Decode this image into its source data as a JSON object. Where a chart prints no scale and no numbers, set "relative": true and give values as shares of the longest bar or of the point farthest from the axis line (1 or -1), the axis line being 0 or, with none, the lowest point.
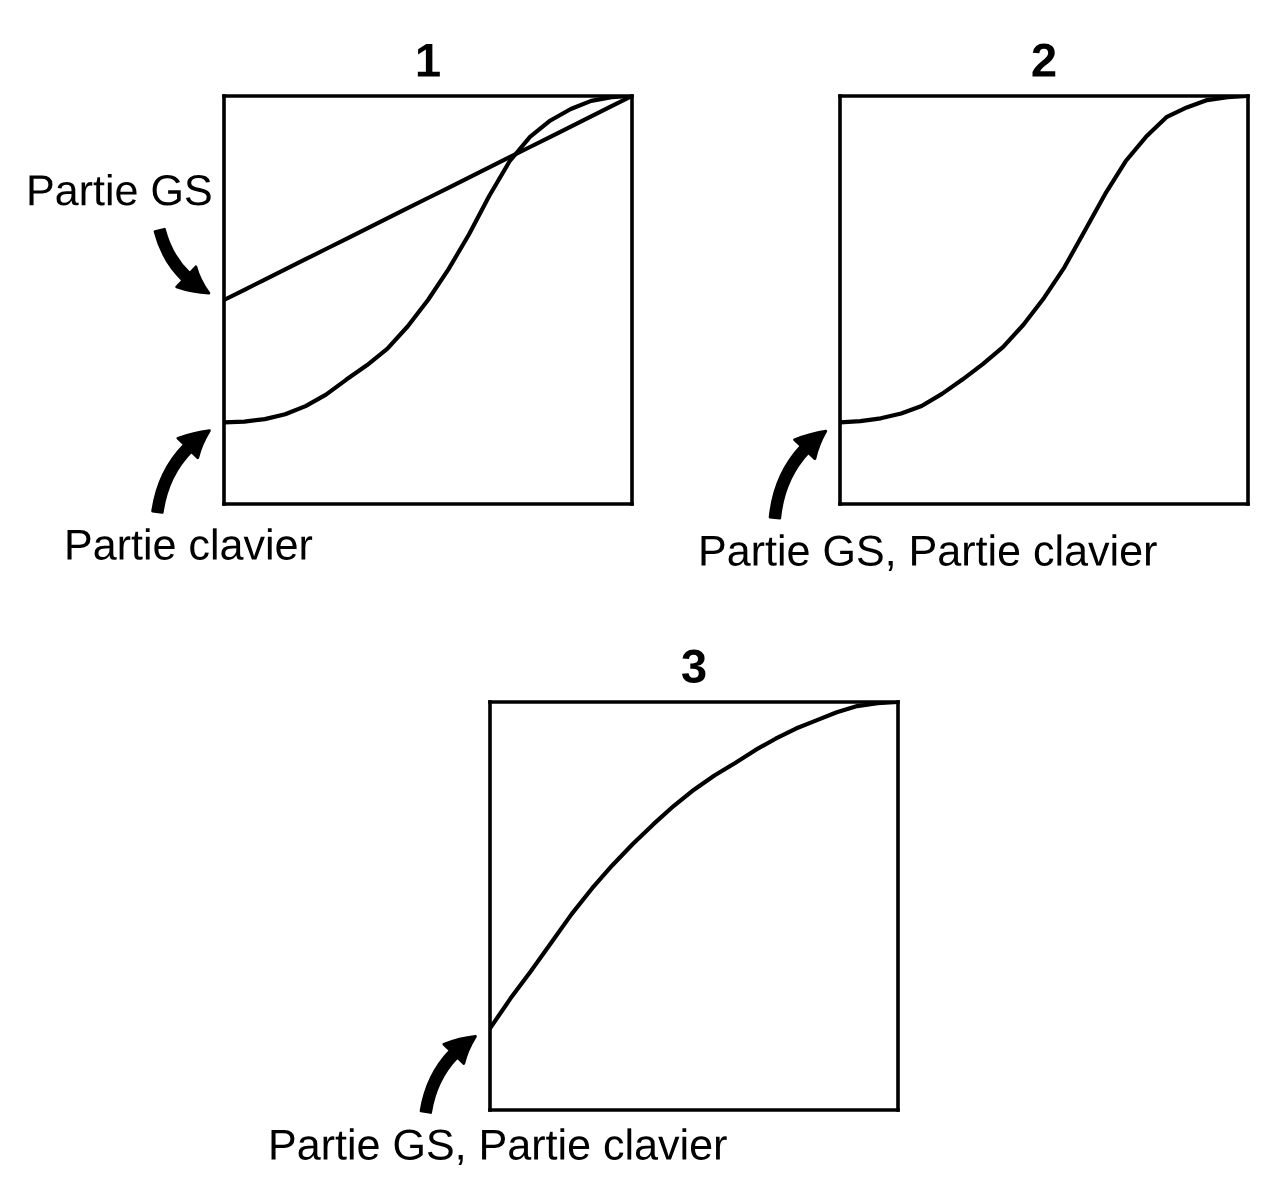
{
  "chart_data": [
    {
      "type": "line",
      "title": "1",
      "relative": true,
      "categories": [
        null,
        null,
        null,
        null,
        null,
        null,
        null,
        null,
        null,
        null,
        null,
        null,
        null,
        null,
        null,
        null,
        null,
        null,
        null,
        null,
        null
      ],
      "series": [
        {
          "name": "Partie GS",
          "color": "#000000",
          "values": [
            0.5,
            0.525,
            0.55,
            0.575,
            0.6,
            0.625,
            0.65,
            0.675,
            0.7,
            0.725,
            0.75,
            0.775,
            0.8,
            0.825,
            0.85,
            0.875,
            0.9,
            0.925,
            0.95,
            0.975,
            1.0
          ]
        },
        {
          "name": "Partie clavier",
          "color": "#000000",
          "values": [
            0.2,
            0.202,
            0.208,
            0.22,
            0.24,
            0.268,
            0.305,
            0.34,
            0.38,
            0.435,
            0.5,
            0.575,
            0.66,
            0.755,
            0.84,
            0.9,
            0.94,
            0.968,
            0.988,
            0.997,
            1.0
          ]
        }
      ]
    },
    {
      "type": "line",
      "title": "2",
      "relative": true,
      "categories": [
        null,
        null,
        null,
        null,
        null,
        null,
        null,
        null,
        null,
        null,
        null,
        null,
        null,
        null,
        null,
        null,
        null,
        null,
        null,
        null,
        null
      ],
      "series": [
        {
          "name": "Partie GS, Partie clavier",
          "color": "#000000",
          "values": [
            0.2,
            0.203,
            0.21,
            0.222,
            0.24,
            0.27,
            0.305,
            0.343,
            0.385,
            0.44,
            0.505,
            0.58,
            0.67,
            0.76,
            0.84,
            0.9,
            0.948,
            0.972,
            0.99,
            0.997,
            1.0
          ]
        }
      ]
    },
    {
      "type": "line",
      "title": "3",
      "relative": true,
      "categories": [
        null,
        null,
        null,
        null,
        null,
        null,
        null,
        null,
        null,
        null,
        null,
        null,
        null,
        null,
        null,
        null,
        null,
        null,
        null,
        null,
        null
      ],
      "annotations": [
        {
          "text": "Partie GS, Partie clavier",
          "y": 0.2
        }
      ],
      "series": [
        {
          "color": "#000000",
          "values": [
            0.2,
            0.273,
            0.34,
            0.41,
            0.48,
            0.543,
            0.6,
            0.652,
            0.7,
            0.745,
            0.785,
            0.82,
            0.85,
            0.882,
            0.91,
            0.935,
            0.955,
            0.975,
            0.99,
            0.997,
            1.0
          ]
        }
      ]
    }
  ]
}
